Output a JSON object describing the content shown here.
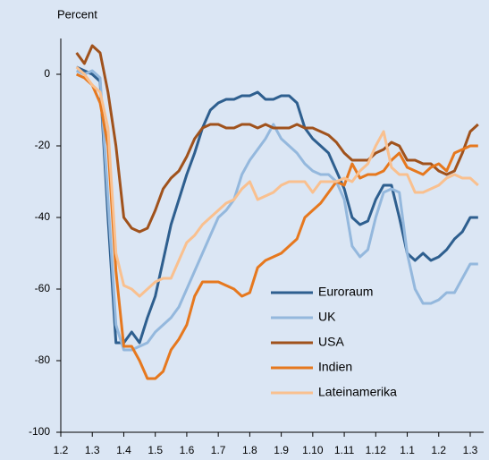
{
  "chart_data": {
    "type": "line",
    "y_label": "Percent",
    "categories": [
      "1.2",
      null,
      null,
      null,
      "1.3",
      null,
      null,
      null,
      "1.4",
      null,
      null,
      null,
      "1.5",
      null,
      null,
      null,
      "1.6",
      null,
      null,
      null,
      "1.7",
      null,
      null,
      null,
      "1.8",
      null,
      null,
      null,
      "1.9",
      null,
      null,
      null,
      "1.10",
      null,
      null,
      null,
      "1.11",
      null,
      null,
      null,
      "1.12",
      null,
      null,
      null,
      "1.1",
      null,
      null,
      null,
      "1.2",
      null,
      null,
      null,
      "1.3",
      null
    ],
    "ylim": [
      -100,
      10
    ],
    "yticks": [
      -100,
      -80,
      -60,
      -40,
      -20,
      0
    ],
    "legend": "right",
    "series": [
      {
        "name": "Euroraum",
        "color": "#2e5f8f",
        "values": [
          null,
          null,
          2,
          1,
          0,
          -2,
          -40,
          -75,
          -75,
          -72,
          -75,
          -68,
          -62,
          -52,
          -42,
          -35,
          -28,
          -22,
          -15,
          -10,
          -8,
          -7,
          -7,
          -6,
          -6,
          -5,
          -7,
          -7,
          -6,
          -6,
          -8,
          -15,
          -18,
          -20,
          -22,
          -27,
          -32,
          -40,
          -42,
          -41,
          -35,
          -31,
          -31,
          -40,
          -50,
          -52,
          -50,
          -52,
          -51,
          -49,
          -46,
          -44,
          -40,
          -40
        ]
      },
      {
        "name": "UK",
        "color": "#94b8dd",
        "values": [
          null,
          null,
          1,
          0,
          1,
          -1,
          -35,
          -70,
          -77,
          -77,
          -76,
          -75,
          -72,
          -70,
          -68,
          -65,
          -60,
          -55,
          -50,
          -45,
          -40,
          -38,
          -35,
          -28,
          -24,
          -21,
          -18,
          -14,
          -18,
          -20,
          -22,
          -25,
          -27,
          -28,
          -28,
          -30,
          -35,
          -48,
          -51,
          -49,
          -40,
          -33,
          -32,
          -33,
          -50,
          -60,
          -64,
          -64,
          -63,
          -61,
          -61,
          -57,
          -53,
          -53
        ]
      },
      {
        "name": "USA",
        "color": "#a0521c",
        "values": [
          null,
          null,
          6,
          3,
          8,
          6,
          -5,
          -20,
          -40,
          -43,
          -44,
          -43,
          -38,
          -32,
          -29,
          -27,
          -23,
          -18,
          -15,
          -14,
          -14,
          -15,
          -15,
          -14,
          -14,
          -15,
          -14,
          -15,
          -15,
          -15,
          -14,
          -15,
          -15,
          -16,
          -17,
          -19,
          -22,
          -24,
          -24,
          -24,
          -22,
          -21,
          -19,
          -20,
          -24,
          -24,
          -25,
          -25,
          -27,
          -28,
          -27,
          -22,
          -16,
          -14
        ]
      },
      {
        "name": "Indien",
        "color": "#e6781e",
        "values": [
          null,
          null,
          0,
          -1,
          -3,
          -8,
          -20,
          -55,
          -76,
          -76,
          -80,
          -85,
          -85,
          -83,
          -77,
          -74,
          -70,
          -62,
          -58,
          -58,
          -58,
          -59,
          -60,
          -62,
          -61,
          -54,
          -52,
          -51,
          -50,
          -48,
          -46,
          -40,
          -38,
          -36,
          -33,
          -30,
          -31,
          -25,
          -29,
          -28,
          -28,
          -27,
          -24,
          -22,
          -26,
          -27,
          -28,
          -26,
          -25,
          -27,
          -22,
          -21,
          -20,
          -20
        ]
      },
      {
        "name": "Lateinamerika",
        "color": "#f9c08f",
        "values": [
          null,
          null,
          2,
          0,
          -3,
          -5,
          -15,
          -50,
          -59,
          -60,
          -62,
          -60,
          -58,
          -57,
          -57,
          -52,
          -47,
          -45,
          -42,
          -40,
          -38,
          -36,
          -35,
          -32,
          -30,
          -35,
          -34,
          -33,
          -31,
          -30,
          -30,
          -30,
          -33,
          -30,
          -30,
          -30,
          -29,
          -30,
          -27,
          -25,
          -20,
          -16,
          -26,
          -28,
          -28,
          -33,
          -33,
          -32,
          -31,
          -29,
          -28,
          -29,
          -29,
          -31
        ]
      }
    ]
  }
}
